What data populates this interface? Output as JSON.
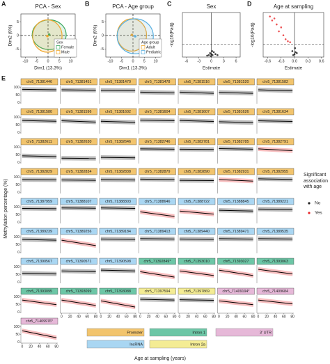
{
  "chart_data": [
    {
      "panel": "A",
      "type": "pca",
      "title": "PCA - Sex",
      "x_label": "Dim1 (13.3%)",
      "y_label": "Dim2 (9%)",
      "xlim": [
        -12,
        12
      ],
      "ylim": [
        -8,
        8
      ],
      "xticks": [
        -10,
        -5,
        0,
        5,
        10
      ],
      "yticks": [
        -5,
        0,
        5
      ],
      "legend_title": "Sex",
      "groups": [
        {
          "name": "Female",
          "color": "#3aa860",
          "center": [
            0.5,
            0.3
          ],
          "radius": [
            7.5,
            5.5
          ]
        },
        {
          "name": "Male",
          "color": "#f0a830",
          "center": [
            -0.3,
            -0.2
          ],
          "radius": [
            6.5,
            6
          ]
        }
      ]
    },
    {
      "panel": "B",
      "type": "pca",
      "title": "PCA - Age group",
      "x_label": "Dim1 (13.3%)",
      "y_label": "Dim2 (9%)",
      "xlim": [
        -12,
        12
      ],
      "ylim": [
        -8,
        8
      ],
      "xticks": [
        -10,
        -5,
        0,
        5,
        10
      ],
      "yticks": [
        -5,
        0,
        5
      ],
      "legend_title": "Age group",
      "groups": [
        {
          "name": "Adult",
          "color": "#f0a830",
          "center": [
            -0.5,
            0.2
          ],
          "radius": [
            6.5,
            6
          ]
        },
        {
          "name": "Pediatric",
          "color": "#5ab0e0",
          "center": [
            1,
            -0.3
          ],
          "radius": [
            8,
            6.5
          ]
        }
      ]
    },
    {
      "panel": "C",
      "type": "volcano",
      "title": "Sex",
      "x_label": "Estimate",
      "y_label": "-log10(Padj)",
      "xlim": [
        -7,
        7
      ],
      "ylim": [
        0,
        4.5
      ],
      "xticks": [
        -6,
        -3,
        0,
        3,
        6
      ],
      "hline": 1.3,
      "color": "#111111",
      "points": [
        [
          -0.6,
          0.2
        ],
        [
          -0.3,
          0.4
        ],
        [
          0,
          0.3
        ],
        [
          0.3,
          0.2
        ],
        [
          0.6,
          0.5
        ],
        [
          1,
          0.3
        ],
        [
          -1,
          0.15
        ],
        [
          0.2,
          0.6
        ],
        [
          1.5,
          0.2
        ],
        [
          -0.1,
          0.1
        ]
      ]
    },
    {
      "panel": "D",
      "type": "volcano",
      "title": "Age at sampling",
      "x_label": "Estimate",
      "y_label": "-log10(Padj)",
      "xlim": [
        -0.7,
        0.65
      ],
      "ylim": [
        0,
        4.5
      ],
      "xticks": [
        -0.6,
        -0.3,
        {
          "value": 0,
          "label": "0.0"
        },
        0.3,
        0.6
      ],
      "hline": 1.3,
      "color": "#111111",
      "highlight_color": "#e8282b",
      "points": [
        [
          -0.55,
          4.1
        ],
        [
          -0.5,
          3.7
        ],
        [
          -0.45,
          3.9
        ],
        [
          -0.4,
          3.3
        ],
        [
          -0.3,
          3.0
        ],
        [
          -0.35,
          2.6
        ],
        [
          -0.25,
          2.2
        ],
        [
          -0.2,
          1.8
        ],
        [
          -0.15,
          1.6
        ],
        [
          -0.1,
          1.5
        ],
        [
          -0.05,
          0.6
        ],
        [
          0,
          0.3
        ],
        [
          0.02,
          0.5
        ],
        [
          -0.03,
          0.2
        ],
        [
          0.05,
          0.4
        ],
        [
          0.01,
          0.9
        ]
      ]
    },
    {
      "panel": "E",
      "type": "facet_scatter",
      "x_label": "Age at sampling (years)",
      "y_label": "Methylation percentage (%)",
      "xlim": [
        -3,
        83
      ],
      "ylim": [
        -5,
        112
      ],
      "xticks": [
        0,
        20,
        40,
        60,
        80
      ],
      "yticks": [
        0,
        50,
        100
      ],
      "legend_title": "Significant association with age",
      "significance": [
        {
          "name": "No",
          "color": "#222222"
        },
        {
          "name": "Yes",
          "color": "#e8282b"
        }
      ],
      "regions": [
        {
          "name": "Promoter",
          "color": "#f2c46d"
        },
        {
          "name": "lncRNA",
          "color": "#a9d6f2"
        },
        {
          "name": "Intron 1",
          "color": "#6cc6a6"
        },
        {
          "name": "Intron 2a",
          "color": "#f4ec94"
        },
        {
          "name": "3' UTR",
          "color": "#e6b8d8"
        }
      ],
      "facets": [
        {
          "label": "chr5_71381446",
          "region": "Promoter",
          "significant": false,
          "trend": [
            88,
            85
          ]
        },
        {
          "label": "chr5_71381451",
          "region": "Promoter",
          "significant": false,
          "trend": [
            85,
            82
          ]
        },
        {
          "label": "chr5_71381470",
          "region": "Promoter",
          "significant": false,
          "trend": [
            82,
            80
          ]
        },
        {
          "label": "chr5_71381478",
          "region": "Promoter",
          "significant": false,
          "trend": [
            70,
            65
          ]
        },
        {
          "label": "chr5_71381516",
          "region": "Promoter",
          "significant": false,
          "trend": [
            70,
            62
          ]
        },
        {
          "label": "chr5_71381520",
          "region": "Promoter",
          "significant": false,
          "trend": [
            68,
            62
          ]
        },
        {
          "label": "chr5_71381582",
          "region": "Promoter",
          "significant": false,
          "trend": [
            85,
            78
          ]
        },
        {
          "label": "chr5_71381580",
          "region": "Promoter",
          "significant": false,
          "trend": [
            80,
            75
          ]
        },
        {
          "label": "chr5_71381596",
          "region": "Promoter",
          "significant": false,
          "trend": [
            78,
            70
          ]
        },
        {
          "label": "chr5_71381602",
          "region": "Promoter",
          "significant": false,
          "trend": [
            75,
            68
          ]
        },
        {
          "label": "chr5_71381604",
          "region": "Promoter",
          "significant": false,
          "trend": [
            82,
            78
          ]
        },
        {
          "label": "chr5_71381607",
          "region": "Promoter",
          "significant": false,
          "trend": [
            80,
            74
          ]
        },
        {
          "label": "chr5_71381626",
          "region": "Promoter",
          "significant": false,
          "trend": [
            72,
            66
          ]
        },
        {
          "label": "chr5_71381634",
          "region": "Promoter",
          "significant": false,
          "trend": [
            78,
            74
          ]
        },
        {
          "label": "chr5_71382611",
          "region": "Promoter",
          "significant": false,
          "trend": [
            45,
            40
          ]
        },
        {
          "label": "chr5_71382630",
          "region": "Promoter",
          "significant": false,
          "trend": [
            30,
            28
          ]
        },
        {
          "label": "chr5_71382646",
          "region": "Promoter",
          "significant": false,
          "trend": [
            35,
            32
          ]
        },
        {
          "label": "chr5_71382746",
          "region": "Promoter",
          "significant": false,
          "trend": [
            90,
            88
          ]
        },
        {
          "label": "chr5_71382781",
          "region": "Promoter",
          "significant": false,
          "trend": [
            88,
            86
          ]
        },
        {
          "label": "chr5_71382785",
          "region": "Promoter",
          "significant": false,
          "trend": [
            92,
            88
          ]
        },
        {
          "label": "chr5_71382791",
          "region": "Promoter",
          "significant": true,
          "trend": [
            90,
            78
          ]
        },
        {
          "label": "chr5_71382829",
          "region": "Promoter",
          "significant": false,
          "trend": [
            85,
            83
          ]
        },
        {
          "label": "chr5_71382834",
          "region": "Promoter",
          "significant": false,
          "trend": [
            82,
            80
          ]
        },
        {
          "label": "chr5_71382838",
          "region": "Promoter",
          "significant": false,
          "trend": [
            85,
            82
          ]
        },
        {
          "label": "chr5_71382879",
          "region": "Promoter",
          "significant": false,
          "trend": [
            88,
            85
          ]
        },
        {
          "label": "chr5_71382890",
          "region": "Promoter",
          "significant": false,
          "trend": [
            80,
            78
          ]
        },
        {
          "label": "chr5_71382931",
          "region": "Promoter",
          "significant": true,
          "trend": [
            85,
            75
          ]
        },
        {
          "label": "chr5_71382955",
          "region": "Promoter",
          "significant": false,
          "trend": [
            90,
            86
          ]
        },
        {
          "label": "chr5_71387959",
          "region": "lncRNA",
          "significant": false,
          "trend": [
            92,
            90
          ]
        },
        {
          "label": "chr5_71388107",
          "region": "lncRNA",
          "significant": false,
          "trend": [
            95,
            93
          ]
        },
        {
          "label": "chr5_71388303",
          "region": "lncRNA",
          "significant": false,
          "trend": [
            95,
            92
          ]
        },
        {
          "label": "chr5_71388646",
          "region": "lncRNA",
          "significant": true,
          "trend": [
            70,
            40
          ]
        },
        {
          "label": "chr5_71388722",
          "region": "lncRNA",
          "significant": true,
          "trend": [
            75,
            55
          ]
        },
        {
          "label": "chr5_71388845",
          "region": "lncRNA",
          "significant": false,
          "trend": [
            80,
            75
          ]
        },
        {
          "label": "chr5_71389221",
          "region": "lncRNA",
          "significant": false,
          "trend": [
            88,
            84
          ]
        },
        {
          "label": "chr5_71389239",
          "region": "lncRNA",
          "significant": false,
          "trend": [
            85,
            80
          ]
        },
        {
          "label": "chr5_71389256",
          "region": "lncRNA",
          "significant": true,
          "trend": [
            80,
            45
          ]
        },
        {
          "label": "chr5_71389184",
          "region": "lncRNA",
          "significant": false,
          "trend": [
            88,
            85
          ]
        },
        {
          "label": "chr5_71389413",
          "region": "lncRNA",
          "significant": false,
          "trend": [
            90,
            88
          ]
        },
        {
          "label": "chr5_71389440",
          "region": "lncRNA",
          "significant": false,
          "trend": [
            88,
            85
          ]
        },
        {
          "label": "chr5_71389471",
          "region": "lncRNA",
          "significant": false,
          "trend": [
            90,
            87
          ]
        },
        {
          "label": "chr5_71389535",
          "region": "lncRNA",
          "significant": false,
          "trend": [
            90,
            88
          ]
        },
        {
          "label": "chr5_71390567",
          "region": "lncRNA",
          "significant": false,
          "trend": [
            60,
            55
          ]
        },
        {
          "label": "chr5_71390571",
          "region": "lncRNA",
          "significant": false,
          "trend": [
            75,
            70
          ]
        },
        {
          "label": "chr5_71390598",
          "region": "lncRNA",
          "significant": false,
          "trend": [
            80,
            75
          ]
        },
        {
          "label": "chr5_71392849*",
          "region": "Intron 1",
          "significant": true,
          "trend": [
            70,
            35
          ]
        },
        {
          "label": "chr5_71393010",
          "region": "Intron 1",
          "significant": true,
          "trend": [
            75,
            45
          ]
        },
        {
          "label": "chr5_71393027",
          "region": "Intron 1",
          "significant": true,
          "trend": [
            80,
            45
          ]
        },
        {
          "label": "chr5_71393063",
          "region": "Intron 1",
          "significant": true,
          "trend": [
            85,
            55
          ]
        },
        {
          "label": "chr5_71393095",
          "region": "Intron 1",
          "significant": true,
          "trend": [
            80,
            50
          ]
        },
        {
          "label": "chr5_71393099",
          "region": "Intron 1",
          "significant": true,
          "trend": [
            80,
            45
          ]
        },
        {
          "label": "chr5_71393088",
          "region": "Intron 1",
          "significant": true,
          "trend": [
            75,
            35
          ]
        },
        {
          "label": "chr5_71397594",
          "region": "Intron 2a",
          "significant": false,
          "trend": [
            85,
            80
          ]
        },
        {
          "label": "chr5_71397869",
          "region": "Intron 2a",
          "significant": false,
          "trend": [
            82,
            78
          ]
        },
        {
          "label": "chr5_71409194*",
          "region": "3' UTR",
          "significant": true,
          "trend": [
            75,
            50
          ]
        },
        {
          "label": "chr5_71409684",
          "region": "3' UTR",
          "significant": true,
          "trend": [
            80,
            55
          ]
        },
        {
          "label": "chr5_71409976*",
          "region": "3' UTR",
          "significant": true,
          "trend": [
            75,
            30
          ]
        }
      ]
    }
  ]
}
